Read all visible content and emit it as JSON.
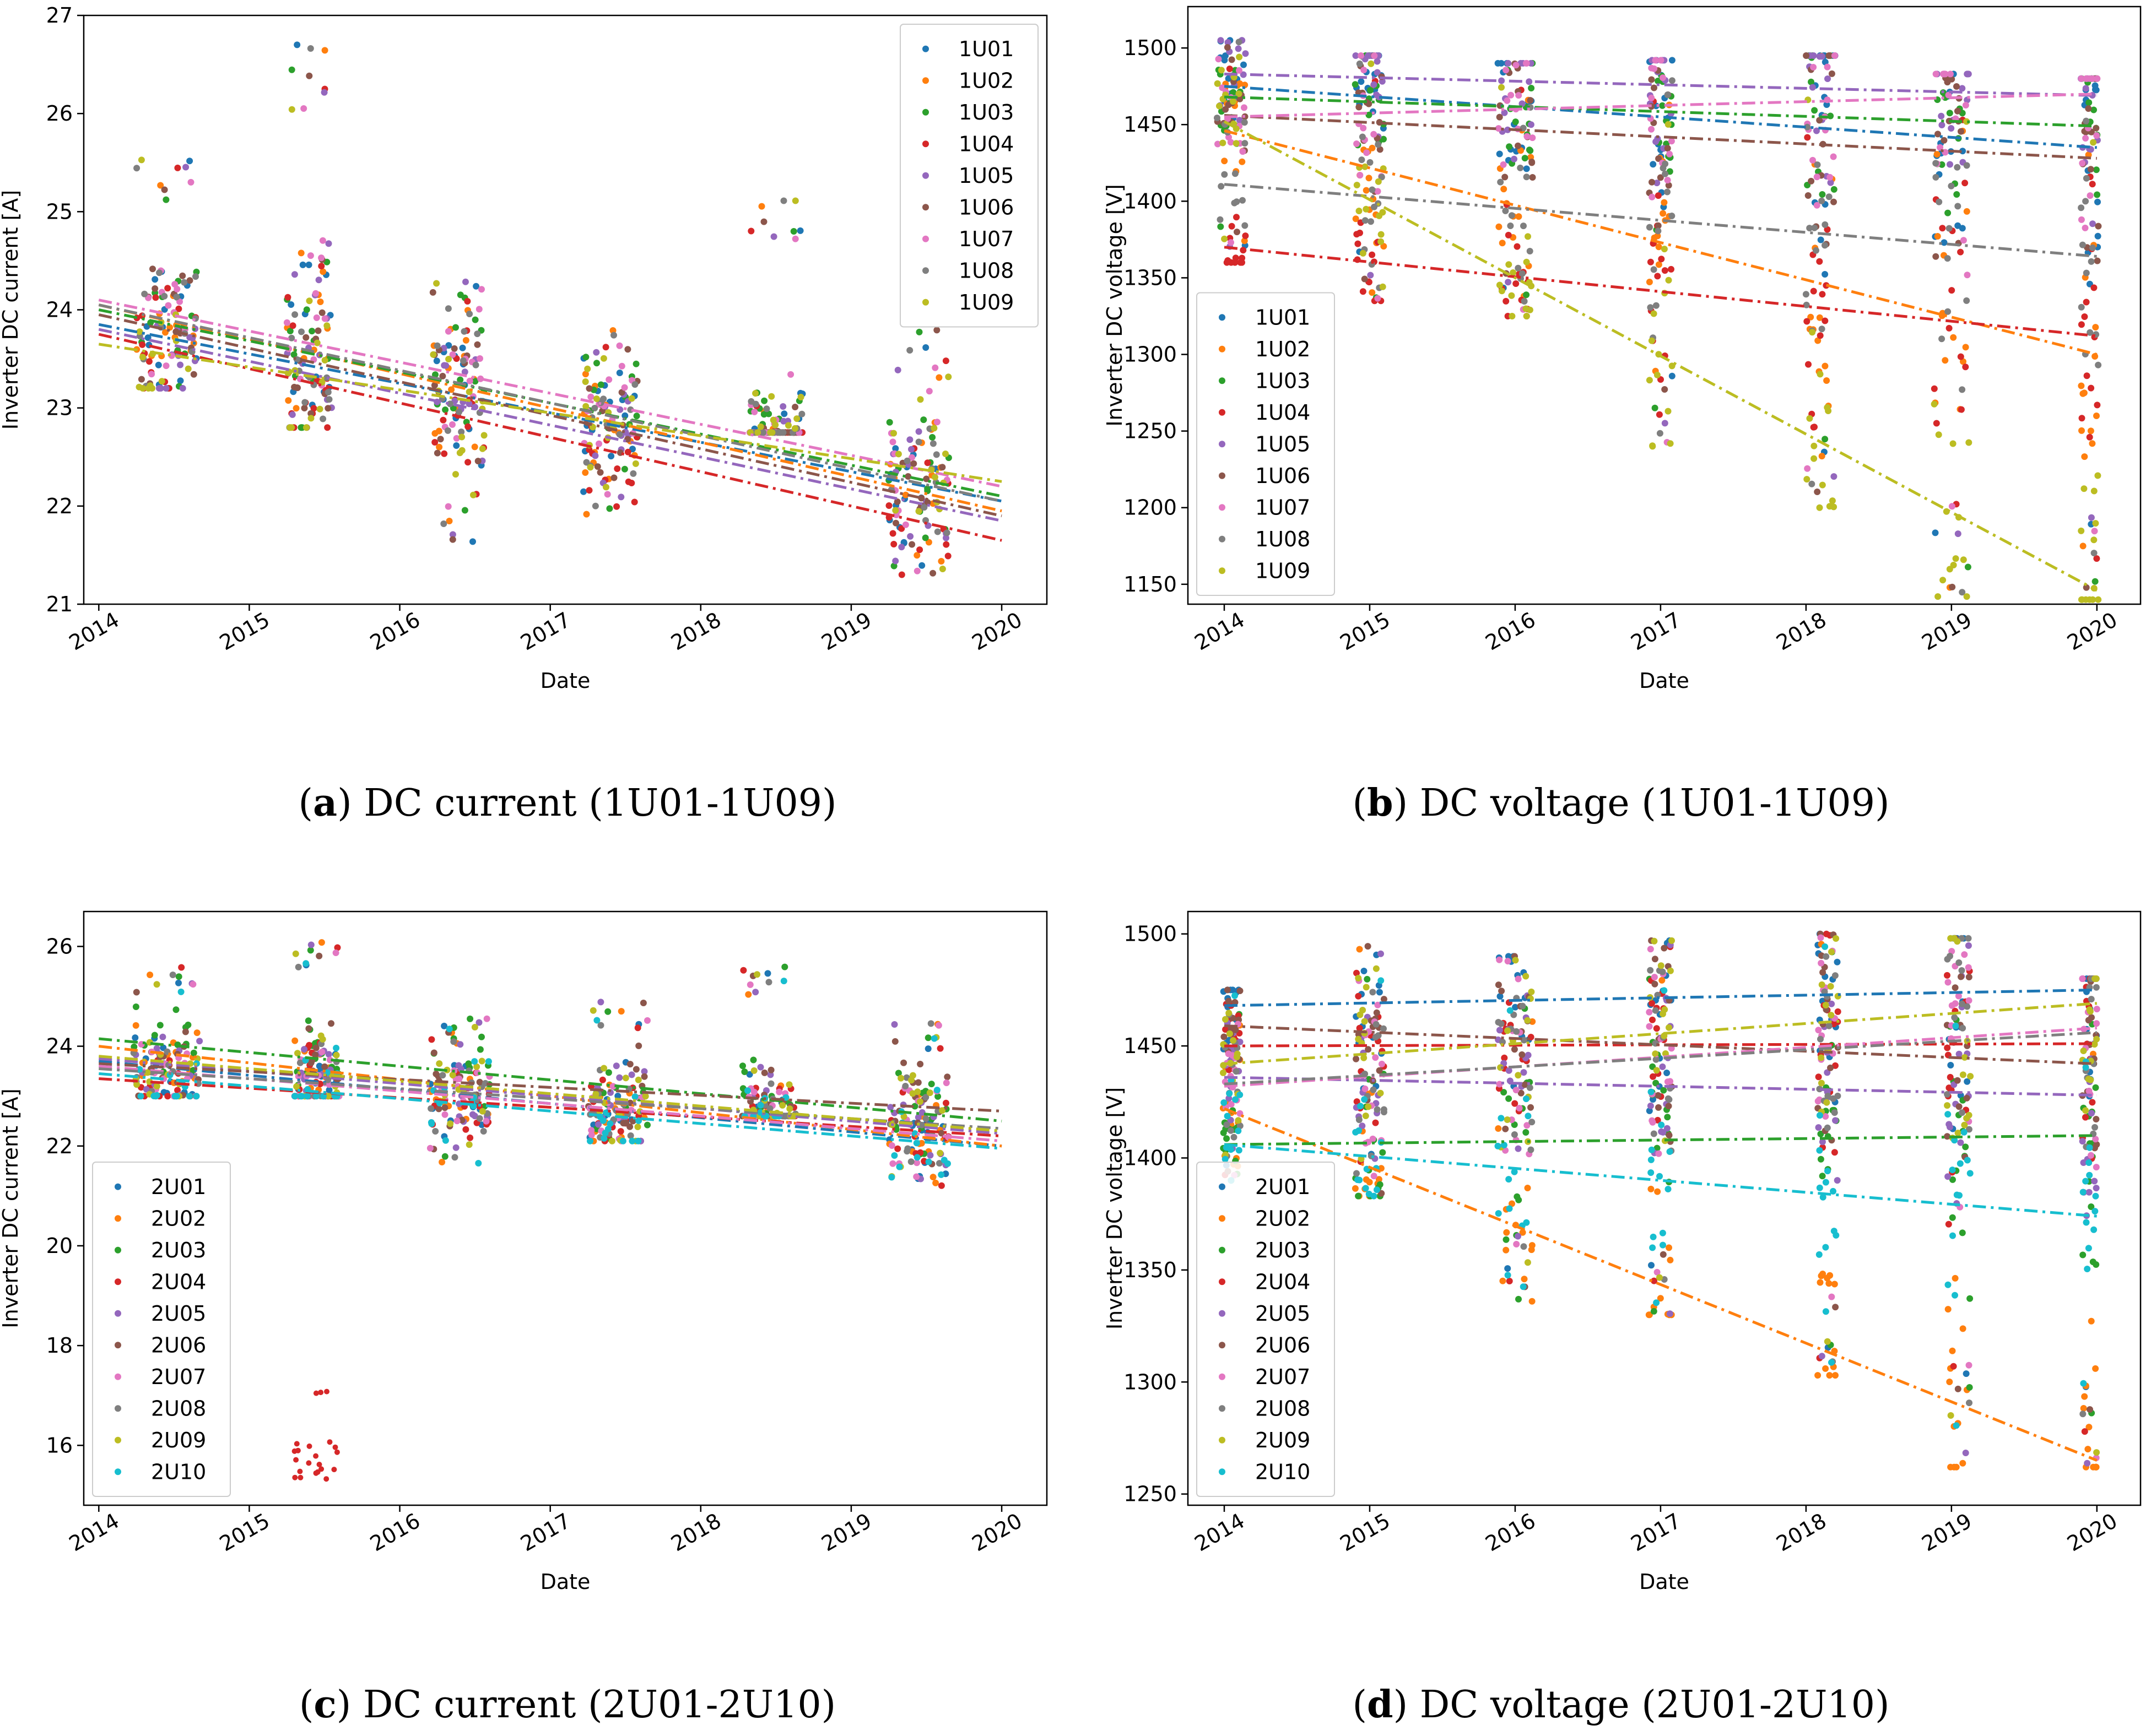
{
  "chart_data": [
    {
      "type": "scatter",
      "panel": "a",
      "caption": {
        "letter": "a",
        "text": "DC current (1U01-1U09)"
      },
      "xlabel": "Date",
      "ylabel": "Inverter DC current [A]",
      "xlim": [
        2013.9,
        2020.3
      ],
      "ylim": [
        21.0,
        27.0
      ],
      "xticks": [
        2014,
        2015,
        2016,
        2017,
        2018,
        2019,
        2020
      ],
      "yticks": [
        21,
        22,
        23,
        24,
        25,
        26,
        27
      ],
      "legend_position": "upper right",
      "trend_style": "dash-dot",
      "series": [
        {
          "name": "1U01",
          "color": "#1f77b4",
          "trend": [
            [
              2014.0,
              23.85
            ],
            [
              2020.0,
              22.05
            ]
          ]
        },
        {
          "name": "1U02",
          "color": "#ff7f0e",
          "trend": [
            [
              2014.0,
              24.05
            ],
            [
              2020.0,
              21.95
            ]
          ]
        },
        {
          "name": "1U03",
          "color": "#2ca02c",
          "trend": [
            [
              2014.0,
              24.0
            ],
            [
              2020.0,
              22.1
            ]
          ]
        },
        {
          "name": "1U04",
          "color": "#d62728",
          "trend": [
            [
              2014.0,
              23.75
            ],
            [
              2020.0,
              21.65
            ]
          ]
        },
        {
          "name": "1U05",
          "color": "#9467bd",
          "trend": [
            [
              2014.0,
              23.8
            ],
            [
              2020.0,
              21.85
            ]
          ]
        },
        {
          "name": "1U06",
          "color": "#8c564b",
          "trend": [
            [
              2014.0,
              23.95
            ],
            [
              2020.0,
              21.9
            ]
          ]
        },
        {
          "name": "1U07",
          "color": "#e377c2",
          "trend": [
            [
              2014.0,
              24.1
            ],
            [
              2020.0,
              22.2
            ]
          ]
        },
        {
          "name": "1U08",
          "color": "#7f7f7f",
          "trend": [
            [
              2014.0,
              24.05
            ],
            [
              2020.0,
              22.05
            ]
          ]
        },
        {
          "name": "1U09",
          "color": "#bcbd22",
          "trend": [
            [
              2014.0,
              23.65
            ],
            [
              2020.0,
              22.25
            ]
          ]
        }
      ],
      "clusters": [
        {
          "x": 2014.45,
          "y_min": 23.2,
          "y_max": 25.6,
          "spread": 0.2
        },
        {
          "x": 2015.4,
          "y_min": 22.8,
          "y_max": 26.75,
          "spread": 0.15
        },
        {
          "x": 2016.4,
          "y_min": 21.6,
          "y_max": 24.3,
          "spread": 0.18
        },
        {
          "x": 2017.4,
          "y_min": 21.9,
          "y_max": 23.85,
          "spread": 0.18
        },
        {
          "x": 2018.5,
          "y_min": 22.75,
          "y_max": 25.15,
          "spread": 0.18
        },
        {
          "x": 2019.45,
          "y_min": 21.3,
          "y_max": 23.8,
          "spread": 0.2
        }
      ]
    },
    {
      "type": "scatter",
      "panel": "b",
      "caption": {
        "letter": "b",
        "text": "DC voltage (1U01-1U09)"
      },
      "xlabel": "Date",
      "ylabel": "Inverter DC voltage [V]",
      "xlim": [
        2013.75,
        2020.3
      ],
      "ylim": [
        1137,
        1527
      ],
      "xticks": [
        2014,
        2015,
        2016,
        2017,
        2018,
        2019,
        2020
      ],
      "yticks": [
        1150,
        1200,
        1250,
        1300,
        1350,
        1400,
        1450,
        1500
      ],
      "legend_position": "lower left",
      "trend_style": "dash-dot",
      "series": [
        {
          "name": "1U01",
          "color": "#1f77b4",
          "trend": [
            [
              2014.0,
              1475
            ],
            [
              2020.0,
              1435
            ]
          ]
        },
        {
          "name": "1U02",
          "color": "#ff7f0e",
          "trend": [
            [
              2014.0,
              1446
            ],
            [
              2020.0,
              1300
            ]
          ]
        },
        {
          "name": "1U03",
          "color": "#2ca02c",
          "trend": [
            [
              2014.0,
              1468
            ],
            [
              2020.0,
              1449
            ]
          ]
        },
        {
          "name": "1U04",
          "color": "#d62728",
          "trend": [
            [
              2014.0,
              1370
            ],
            [
              2020.0,
              1312
            ]
          ]
        },
        {
          "name": "1U05",
          "color": "#9467bd",
          "trend": [
            [
              2014.0,
              1483
            ],
            [
              2020.0,
              1469
            ]
          ]
        },
        {
          "name": "1U06",
          "color": "#8c564b",
          "trend": [
            [
              2014.0,
              1456
            ],
            [
              2020.0,
              1428
            ]
          ]
        },
        {
          "name": "1U07",
          "color": "#e377c2",
          "trend": [
            [
              2014.0,
              1455
            ],
            [
              2020.0,
              1470
            ]
          ]
        },
        {
          "name": "1U08",
          "color": "#7f7f7f",
          "trend": [
            [
              2014.0,
              1411
            ],
            [
              2020.0,
              1364
            ]
          ]
        },
        {
          "name": "1U09",
          "color": "#bcbd22",
          "trend": [
            [
              2014.0,
              1452
            ],
            [
              2020.0,
              1146
            ]
          ]
        }
      ],
      "clusters": [
        {
          "x": 2014.05,
          "y_min": 1360,
          "y_max": 1505,
          "spread": 0.1
        },
        {
          "x": 2015.0,
          "y_min": 1335,
          "y_max": 1495,
          "spread": 0.1
        },
        {
          "x": 2016.0,
          "y_min": 1325,
          "y_max": 1490,
          "spread": 0.12
        },
        {
          "x": 2017.0,
          "y_min": 1240,
          "y_max": 1492,
          "spread": 0.08
        },
        {
          "x": 2018.1,
          "y_min": 1200,
          "y_max": 1495,
          "spread": 0.1
        },
        {
          "x": 2019.0,
          "y_min": 1142,
          "y_max": 1483,
          "spread": 0.12
        },
        {
          "x": 2019.95,
          "y_min": 1140,
          "y_max": 1480,
          "spread": 0.06
        }
      ]
    },
    {
      "type": "scatter",
      "panel": "c",
      "caption": {
        "letter": "c",
        "text": "DC current (2U01-2U10)"
      },
      "xlabel": "Date",
      "ylabel": "Inverter DC current [A]",
      "xlim": [
        2013.9,
        2020.3
      ],
      "ylim": [
        14.8,
        26.7
      ],
      "xticks": [
        2014,
        2015,
        2016,
        2017,
        2018,
        2019,
        2020
      ],
      "yticks": [
        16,
        18,
        20,
        22,
        24,
        26
      ],
      "legend_position": "lower left",
      "trend_style": "dash-dot",
      "series": [
        {
          "name": "2U01",
          "color": "#1f77b4",
          "trend": [
            [
              2014.0,
              23.7
            ],
            [
              2020.0,
              22.0
            ]
          ]
        },
        {
          "name": "2U02",
          "color": "#ff7f0e",
          "trend": [
            [
              2014.0,
              24.0
            ],
            [
              2020.0,
              22.0
            ]
          ]
        },
        {
          "name": "2U03",
          "color": "#2ca02c",
          "trend": [
            [
              2014.0,
              24.15
            ],
            [
              2020.0,
              22.5
            ]
          ]
        },
        {
          "name": "2U04",
          "color": "#d62728",
          "trend": [
            [
              2014.0,
              23.35
            ],
            [
              2020.0,
              22.2
            ]
          ]
        },
        {
          "name": "2U05",
          "color": "#9467bd",
          "trend": [
            [
              2014.0,
              23.75
            ],
            [
              2020.0,
              22.25
            ]
          ]
        },
        {
          "name": "2U06",
          "color": "#8c564b",
          "trend": [
            [
              2014.0,
              23.65
            ],
            [
              2020.0,
              22.7
            ]
          ]
        },
        {
          "name": "2U07",
          "color": "#e377c2",
          "trend": [
            [
              2014.0,
              23.6
            ],
            [
              2020.0,
              22.1
            ]
          ]
        },
        {
          "name": "2U08",
          "color": "#7f7f7f",
          "trend": [
            [
              2014.0,
              23.55
            ],
            [
              2020.0,
              22.35
            ]
          ]
        },
        {
          "name": "2U09",
          "color": "#bcbd22",
          "trend": [
            [
              2014.0,
              23.8
            ],
            [
              2020.0,
              22.3
            ]
          ]
        },
        {
          "name": "2U10",
          "color": "#17becf",
          "trend": [
            [
              2014.0,
              23.45
            ],
            [
              2020.0,
              21.95
            ]
          ]
        }
      ],
      "clusters": [
        {
          "x": 2014.45,
          "y_min": 23.0,
          "y_max": 25.6,
          "spread": 0.22
        },
        {
          "x": 2015.45,
          "y_min": 23.0,
          "y_max": 26.2,
          "spread": 0.15
        },
        {
          "x": 2016.4,
          "y_min": 21.6,
          "y_max": 24.7,
          "spread": 0.2
        },
        {
          "x": 2017.45,
          "y_min": 22.1,
          "y_max": 24.9,
          "spread": 0.2
        },
        {
          "x": 2018.45,
          "y_min": 22.6,
          "y_max": 25.6,
          "spread": 0.18
        },
        {
          "x": 2019.45,
          "y_min": 21.2,
          "y_max": 24.6,
          "spread": 0.2
        }
      ],
      "outliers": {
        "series": "2U04",
        "x": 2015.45,
        "y_min": 15.3,
        "y_max": 17.1,
        "spread": 0.15
      }
    },
    {
      "type": "scatter",
      "panel": "d",
      "caption": {
        "letter": "d",
        "text": "DC voltage (2U01-2U10)"
      },
      "xlabel": "Date",
      "ylabel": "Inverter DC voltage [V]",
      "xlim": [
        2013.75,
        2020.3
      ],
      "ylim": [
        1245,
        1510
      ],
      "xticks": [
        2014,
        2015,
        2016,
        2017,
        2018,
        2019,
        2020
      ],
      "yticks": [
        1250,
        1300,
        1350,
        1400,
        1450,
        1500
      ],
      "legend_position": "lower left",
      "trend_style": "dash-dot",
      "series": [
        {
          "name": "2U01",
          "color": "#1f77b4",
          "trend": [
            [
              2014.0,
              1468
            ],
            [
              2020.0,
              1475
            ]
          ]
        },
        {
          "name": "2U02",
          "color": "#ff7f0e",
          "trend": [
            [
              2014.0,
              1422
            ],
            [
              2020.0,
              1265
            ]
          ]
        },
        {
          "name": "2U03",
          "color": "#2ca02c",
          "trend": [
            [
              2014.0,
              1406
            ],
            [
              2020.0,
              1410
            ]
          ]
        },
        {
          "name": "2U04",
          "color": "#d62728",
          "trend": [
            [
              2014.0,
              1450
            ],
            [
              2020.0,
              1451
            ]
          ]
        },
        {
          "name": "2U05",
          "color": "#9467bd",
          "trend": [
            [
              2014.0,
              1436
            ],
            [
              2020.0,
              1428
            ]
          ]
        },
        {
          "name": "2U06",
          "color": "#8c564b",
          "trend": [
            [
              2014.0,
              1459
            ],
            [
              2020.0,
              1442
            ]
          ]
        },
        {
          "name": "2U07",
          "color": "#e377c2",
          "trend": [
            [
              2014.0,
              1432
            ],
            [
              2020.0,
              1458
            ]
          ]
        },
        {
          "name": "2U08",
          "color": "#7f7f7f",
          "trend": [
            [
              2014.0,
              1433
            ],
            [
              2020.0,
              1456
            ]
          ]
        },
        {
          "name": "2U09",
          "color": "#bcbd22",
          "trend": [
            [
              2014.0,
              1442
            ],
            [
              2020.0,
              1469
            ]
          ]
        },
        {
          "name": "2U10",
          "color": "#17becf",
          "trend": [
            [
              2014.0,
              1406
            ],
            [
              2020.0,
              1374
            ]
          ]
        }
      ],
      "clusters": [
        {
          "x": 2014.05,
          "y_min": 1390,
          "y_max": 1475,
          "spread": 0.06
        },
        {
          "x": 2015.0,
          "y_min": 1383,
          "y_max": 1495,
          "spread": 0.1
        },
        {
          "x": 2016.0,
          "y_min": 1336,
          "y_max": 1490,
          "spread": 0.12
        },
        {
          "x": 2017.0,
          "y_min": 1330,
          "y_max": 1497,
          "spread": 0.08
        },
        {
          "x": 2018.15,
          "y_min": 1303,
          "y_max": 1500,
          "spread": 0.07
        },
        {
          "x": 2019.05,
          "y_min": 1262,
          "y_max": 1498,
          "spread": 0.08
        },
        {
          "x": 2019.95,
          "y_min": 1262,
          "y_max": 1480,
          "spread": 0.05
        }
      ]
    }
  ]
}
